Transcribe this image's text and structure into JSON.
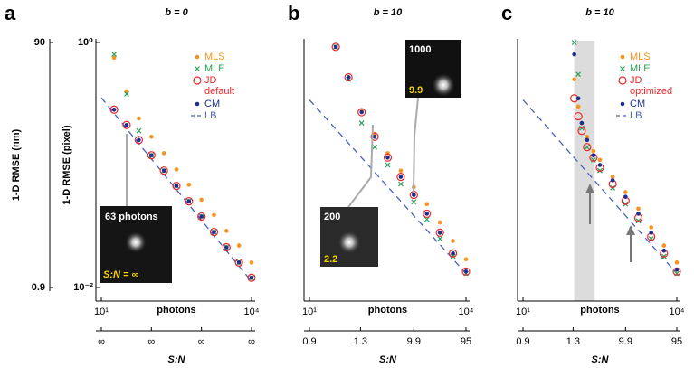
{
  "chart_data": [
    {
      "type": "scatter",
      "panel_label": "a",
      "title": "b = 0",
      "x_label": "photons",
      "y_label": "1-D RMSE (pixel)",
      "y2_label": "1-D RMSE (nm)",
      "xscale": "log",
      "yscale": "log",
      "xlim": [
        10,
        10000
      ],
      "ylim": [
        0.01,
        1
      ],
      "xticks": [
        {
          "value": 10,
          "label": "10¹"
        },
        {
          "value": 10000,
          "label": "10⁴"
        }
      ],
      "yticks": [
        {
          "value": 0.01,
          "label": "10⁻²"
        },
        {
          "value": 1,
          "label": "10⁰"
        }
      ],
      "y2lim": [
        0.9,
        90
      ],
      "y2ticks": [
        0.9,
        90
      ],
      "s2n_label": "S:N",
      "s2n_ticks": [
        {
          "value": 10,
          "label": "∞"
        },
        {
          "value": 100,
          "label": "∞"
        },
        {
          "value": 1000,
          "label": "∞"
        },
        {
          "value": 10000,
          "label": "∞"
        }
      ],
      "legend": "upper right",
      "insets": [
        {
          "label": "63 photons",
          "s2n": "S:N = ∞"
        }
      ],
      "series": [
        {
          "name": "MLS",
          "color": "#f7941d",
          "marker": "dot",
          "x": [
            18,
            32,
            56,
            100,
            178,
            316,
            562,
            1000,
            1778,
            3162,
            5623,
            10000
          ],
          "values": [
            0.75,
            0.4,
            0.24,
            0.17,
            0.125,
            0.092,
            0.069,
            0.052,
            0.039,
            0.029,
            0.022,
            0.016
          ]
        },
        {
          "name": "MLE",
          "color": "#2aa05a",
          "marker": "x",
          "x": [
            18,
            32,
            56,
            100,
            178,
            316,
            562,
            1000,
            1778,
            3162,
            5623,
            10000
          ],
          "values": [
            0.8,
            0.38,
            0.19,
            0.12,
            0.09,
            0.0675,
            0.0506,
            0.038,
            0.0284,
            0.0213,
            0.016,
            0.012
          ]
        },
        {
          "name": "JD default",
          "color": "#e8282b",
          "marker": "ring",
          "x": [
            18,
            32,
            56,
            100,
            178,
            316,
            562,
            1000,
            1778,
            3162,
            5623,
            10000
          ],
          "values": [
            0.283,
            0.212,
            0.16,
            0.12,
            0.09,
            0.0675,
            0.0506,
            0.038,
            0.0284,
            0.0213,
            0.016,
            0.012
          ]
        },
        {
          "name": "CM",
          "color": "#1f2f8f",
          "marker": "dot",
          "x": [
            18,
            32,
            56,
            100,
            178,
            316,
            562,
            1000,
            1778,
            3162,
            5623,
            10000
          ],
          "values": [
            0.283,
            0.212,
            0.16,
            0.12,
            0.09,
            0.0675,
            0.0506,
            0.038,
            0.0284,
            0.0213,
            0.016,
            0.012
          ]
        },
        {
          "name": "LB",
          "color": "#4a5fc1",
          "marker": "dashed",
          "x": [
            10,
            10000
          ],
          "values": [
            0.354,
            0.0112
          ]
        }
      ]
    },
    {
      "type": "scatter",
      "panel_label": "b",
      "title": "b = 10",
      "x_label": "photons",
      "xscale": "log",
      "yscale": "log",
      "xlim": [
        10,
        10000
      ],
      "ylim": [
        0.01,
        1
      ],
      "xticks": [
        {
          "value": 10,
          "label": "10¹"
        },
        {
          "value": 10000,
          "label": "10⁴"
        }
      ],
      "s2n_label": "S:N",
      "s2n_ticks": [
        {
          "value": 10,
          "label": "0.9"
        },
        {
          "value": 95,
          "label": "1.3"
        },
        {
          "value": 1000,
          "label": "9.9"
        },
        {
          "value": 10000,
          "label": "95"
        }
      ],
      "insets": [
        {
          "label": "200",
          "s2n": "2.2"
        },
        {
          "label": "1000",
          "s2n": "9.9"
        }
      ],
      "series": [
        {
          "name": "MLS",
          "color": "#f7941d",
          "marker": "dot",
          "x": [
            32,
            56,
            100,
            178,
            316,
            562,
            1000,
            1778,
            3162,
            5623,
            10000
          ],
          "values": [
            0.92,
            0.52,
            0.28,
            0.18,
            0.125,
            0.09,
            0.066,
            0.048,
            0.034,
            0.024,
            0.017
          ]
        },
        {
          "name": "MLE",
          "color": "#2aa05a",
          "marker": "x",
          "x": [
            32,
            56,
            100,
            178,
            316,
            562,
            1000,
            1778,
            3162,
            5623,
            10000
          ],
          "values": [
            0.92,
            0.5,
            0.22,
            0.14,
            0.1,
            0.07,
            0.05,
            0.036,
            0.025,
            0.018,
            0.013
          ]
        },
        {
          "name": "JD default",
          "color": "#e8282b",
          "marker": "ring",
          "x": [
            32,
            56,
            100,
            178,
            316,
            562,
            1000,
            1778,
            3162,
            5623,
            10000
          ],
          "values": [
            0.92,
            0.52,
            0.27,
            0.17,
            0.115,
            0.08,
            0.057,
            0.04,
            0.028,
            0.019,
            0.0135
          ]
        },
        {
          "name": "CM",
          "color": "#1f2f8f",
          "marker": "dot",
          "x": [
            32,
            56,
            100,
            178,
            316,
            562,
            1000,
            1778,
            3162,
            5623,
            10000
          ],
          "values": [
            0.92,
            0.52,
            0.27,
            0.17,
            0.115,
            0.08,
            0.057,
            0.04,
            0.028,
            0.019,
            0.0135
          ]
        },
        {
          "name": "LB",
          "color": "#4a5fc1",
          "marker": "dashed",
          "x": [
            10,
            10000
          ],
          "values": [
            0.34,
            0.013
          ]
        }
      ]
    },
    {
      "type": "scatter",
      "panel_label": "c",
      "title": "b = 10",
      "x_label": "photons",
      "xscale": "log",
      "yscale": "log",
      "xlim": [
        10,
        10000
      ],
      "ylim": [
        0.01,
        1
      ],
      "xticks": [
        {
          "value": 10,
          "label": "10¹"
        },
        {
          "value": 10000,
          "label": "10⁴"
        }
      ],
      "s2n_label": "S:N",
      "s2n_ticks": [
        {
          "value": 10,
          "label": "0.9"
        },
        {
          "value": 95,
          "label": "1.3"
        },
        {
          "value": 1000,
          "label": "9.9"
        },
        {
          "value": 10000,
          "label": "95"
        }
      ],
      "legend": "upper right",
      "shade": [
        100,
        250
      ],
      "series": [
        {
          "name": "MLS",
          "color": "#f7941d",
          "marker": "dot",
          "x": [
            100,
            120,
            140,
            178,
            237,
            316,
            562,
            1000,
            1778,
            3162,
            5623,
            10000
          ],
          "values": [
            0.5,
            0.3,
            0.22,
            0.17,
            0.13,
            0.11,
            0.08,
            0.06,
            0.044,
            0.031,
            0.022,
            0.016
          ]
        },
        {
          "name": "MLE",
          "color": "#2aa05a",
          "marker": "x",
          "x": [
            100,
            120,
            140,
            178,
            237,
            316,
            562,
            1000,
            1778,
            3162,
            5623,
            10000
          ],
          "values": [
            1.0,
            0.55,
            0.2,
            0.14,
            0.11,
            0.09,
            0.065,
            0.048,
            0.035,
            0.025,
            0.018,
            0.013
          ]
        },
        {
          "name": "JD optimized",
          "color": "#e8282b",
          "marker": "ring",
          "x": [
            100,
            120,
            140,
            178,
            237,
            316,
            562,
            1000,
            1778,
            3162,
            5623,
            10000
          ],
          "values": [
            0.35,
            0.25,
            0.19,
            0.14,
            0.115,
            0.095,
            0.07,
            0.051,
            0.037,
            0.026,
            0.019,
            0.0135
          ]
        },
        {
          "name": "CM",
          "color": "#1f2f8f",
          "marker": "dot",
          "x": [
            100,
            120,
            140,
            178,
            237,
            316,
            562,
            1000,
            1778,
            3162,
            5623,
            10000
          ],
          "values": [
            0.8,
            0.35,
            0.22,
            0.16,
            0.12,
            0.1,
            0.075,
            0.055,
            0.04,
            0.028,
            0.02,
            0.014
          ]
        },
        {
          "name": "LB",
          "color": "#4a5fc1",
          "marker": "dashed",
          "x": [
            10,
            10000
          ],
          "values": [
            0.34,
            0.013
          ]
        }
      ]
    }
  ]
}
